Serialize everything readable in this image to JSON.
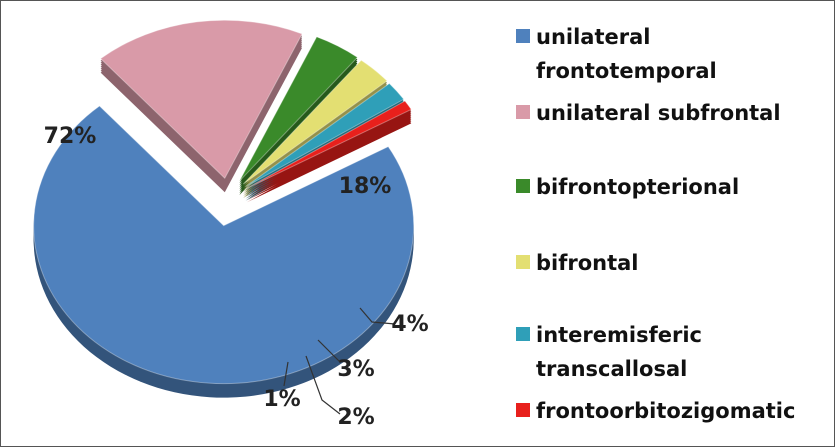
{
  "chart_data": {
    "type": "pie",
    "categories": [
      "unilateral frontotemporal",
      "unilateral subfrontal",
      "bifrontopterional",
      "bifrontal",
      "interemisferic transcallosal",
      "frontoorbitozigomatic"
    ],
    "values": [
      72,
      18,
      4,
      3,
      2,
      1
    ],
    "value_labels": [
      "72%",
      "18%",
      "4%",
      "3%",
      "2%",
      "1%"
    ],
    "colors": [
      "#4f81bd",
      "#d99aa8",
      "#3a8a2a",
      "#e3df72",
      "#2f9fb8",
      "#e8201c"
    ],
    "legend": "right"
  }
}
